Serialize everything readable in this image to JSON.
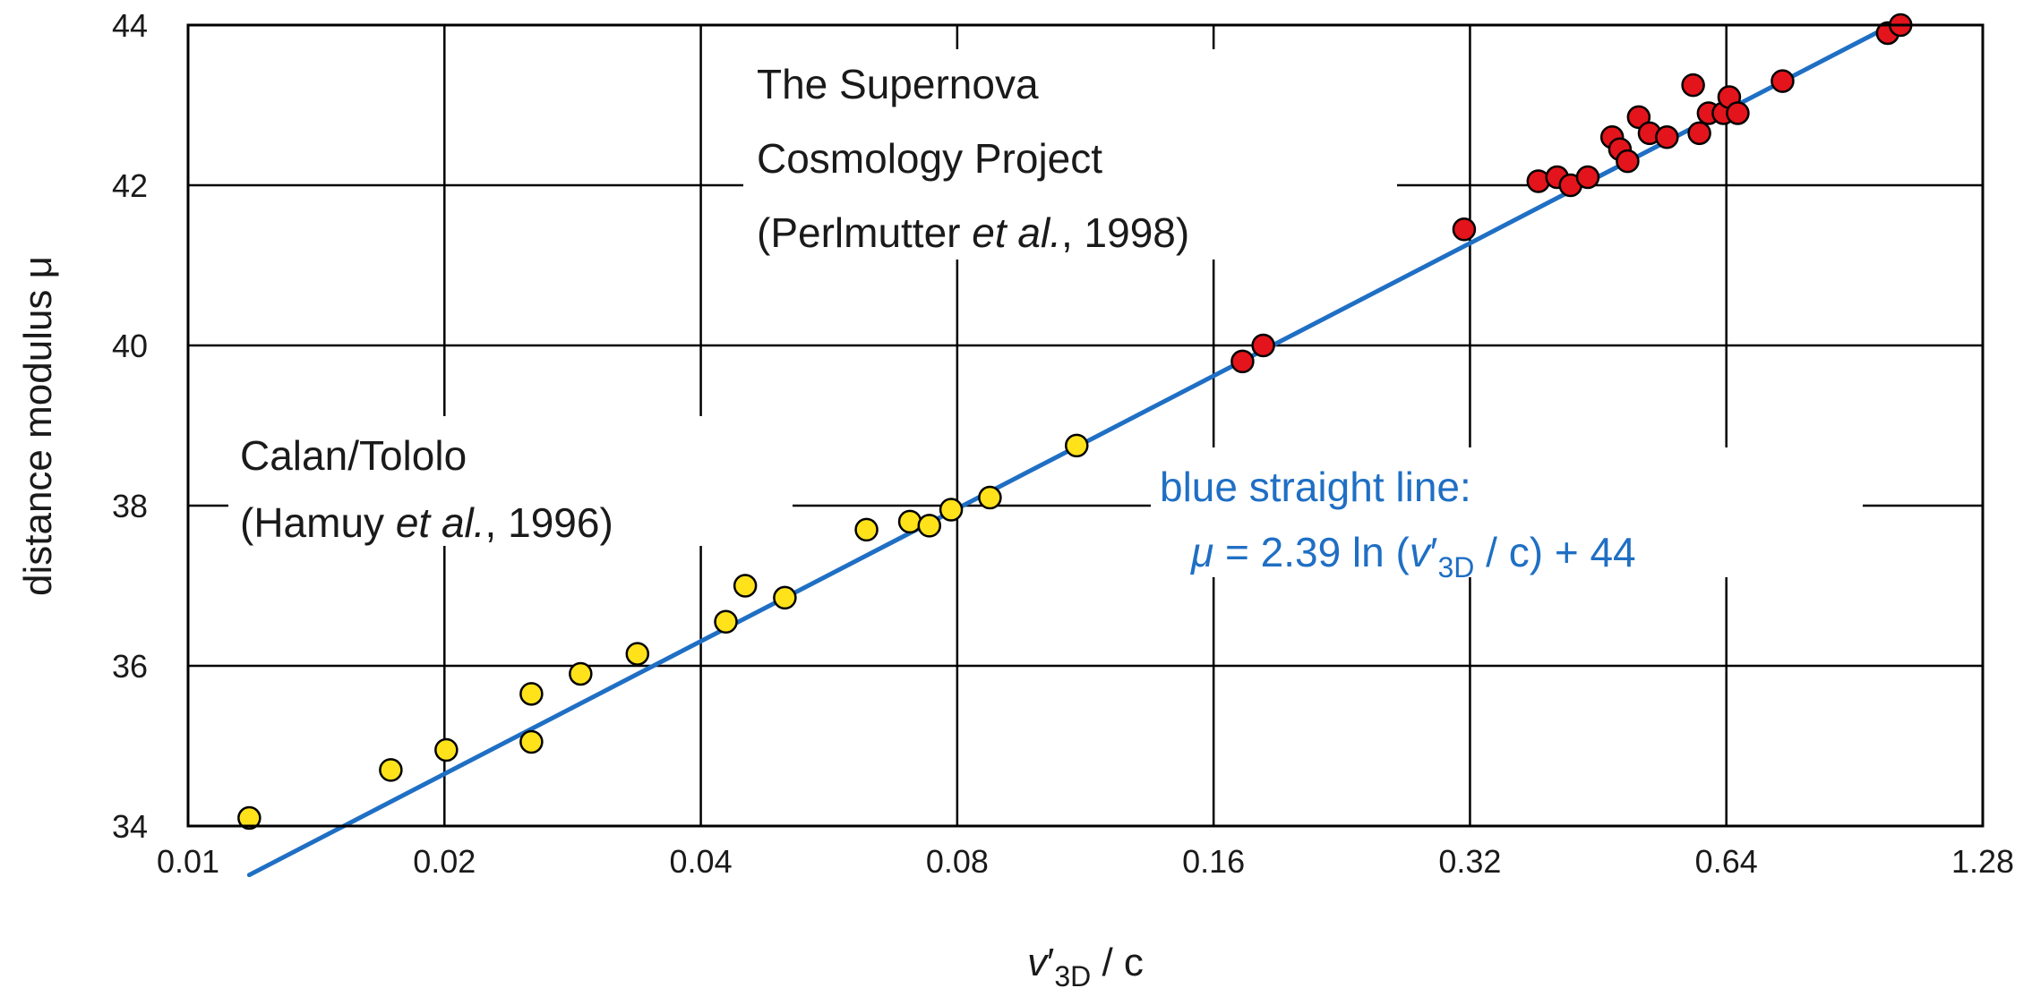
{
  "chart_data": {
    "type": "scatter",
    "xscale": "log2",
    "xlim": [
      0.01,
      1.28
    ],
    "ylim": [
      34,
      44
    ],
    "xticks": [
      "0.01",
      "0.02",
      "0.04",
      "0.08",
      "0.16",
      "0.32",
      "0.64",
      "1.28"
    ],
    "yticks": [
      "34",
      "36",
      "38",
      "40",
      "42",
      "44"
    ],
    "grid": true,
    "ylabel": "distance modulus μ",
    "xlabel": {
      "v": "v",
      "prime": "′",
      "sub": "3D",
      "rest": " / c"
    },
    "annotations": {
      "scp": [
        "The Supernova",
        "Cosmology Project"
      ],
      "scp_cite": {
        "pre": "(Perlmutter ",
        "ital": "et al.",
        "post": ", 1998)"
      },
      "calan": "Calan/Tololo",
      "calan_cite": {
        "pre": "(Hamuy ",
        "ital": "et al.",
        "post": ", 1996)"
      },
      "fit_title": "blue straight line:",
      "fit_eq": {
        "mu": "μ",
        "eq": " = 2.39 ln (",
        "v": "v",
        "prime": "′",
        "sub": "3D",
        "tail": " / c) + 44"
      }
    },
    "series": [
      {
        "color": "#ffe21a",
        "points": [
          [
            0.0118,
            34.1
          ],
          [
            0.0173,
            34.7
          ],
          [
            0.0201,
            34.95
          ],
          [
            0.0253,
            35.05
          ],
          [
            0.0253,
            35.65
          ],
          [
            0.0289,
            35.9
          ],
          [
            0.0337,
            36.15
          ],
          [
            0.0428,
            36.55
          ],
          [
            0.0451,
            37.0
          ],
          [
            0.0502,
            36.85
          ],
          [
            0.0626,
            37.7
          ],
          [
            0.0704,
            37.8
          ],
          [
            0.0742,
            37.75
          ],
          [
            0.0787,
            37.95
          ],
          [
            0.0874,
            38.1
          ],
          [
            0.1105,
            38.75
          ]
        ]
      },
      {
        "color": "#e3141b",
        "points": [
          [
            0.173,
            39.8
          ],
          [
            0.183,
            40.0
          ],
          [
            0.315,
            41.45
          ],
          [
            0.385,
            42.05
          ],
          [
            0.405,
            42.1
          ],
          [
            0.42,
            42.0
          ],
          [
            0.44,
            42.1
          ],
          [
            0.47,
            42.6
          ],
          [
            0.48,
            42.45
          ],
          [
            0.49,
            42.3
          ],
          [
            0.505,
            42.85
          ],
          [
            0.52,
            42.65
          ],
          [
            0.545,
            42.6
          ],
          [
            0.585,
            43.25
          ],
          [
            0.595,
            42.65
          ],
          [
            0.61,
            42.9
          ],
          [
            0.635,
            42.9
          ],
          [
            0.645,
            43.1
          ],
          [
            0.66,
            42.9
          ],
          [
            0.745,
            43.3
          ],
          [
            0.99,
            43.9
          ],
          [
            1.025,
            44.0
          ]
        ]
      }
    ],
    "fit_line": {
      "color": "#1f6fc4",
      "slope": 2.39,
      "intercept": 44,
      "x_from": 0.0118,
      "x_to": 1.0
    }
  }
}
